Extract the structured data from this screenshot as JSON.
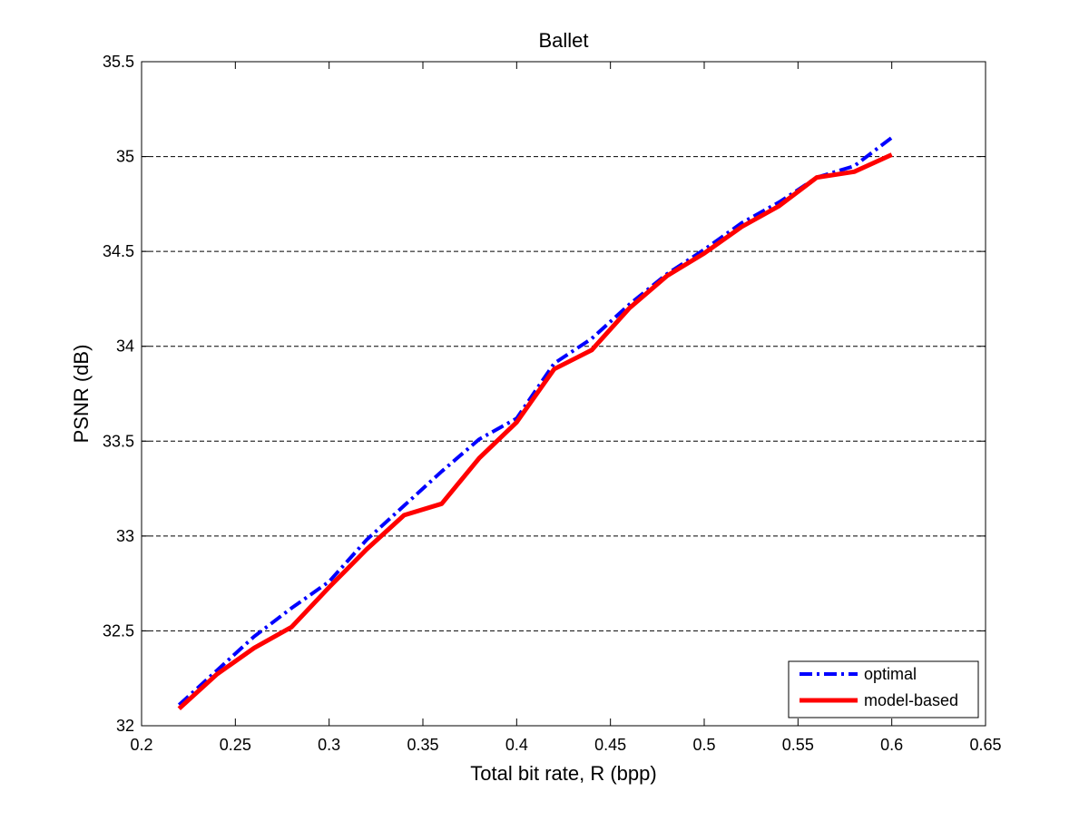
{
  "chart_data": {
    "type": "line",
    "title": "Ballet",
    "xlabel": "Total bit rate, R (bpp)",
    "ylabel": "PSNR (dB)",
    "xlim": [
      0.2,
      0.65
    ],
    "ylim": [
      32,
      35.5
    ],
    "xticks": [
      0.2,
      0.25,
      0.3,
      0.35,
      0.4,
      0.45,
      0.5,
      0.55,
      0.6,
      0.65
    ],
    "yticks": [
      32,
      32.5,
      33,
      33.5,
      34,
      34.5,
      35,
      35.5
    ],
    "xtick_labels": [
      "0.2",
      "0.25",
      "0.3",
      "0.35",
      "0.4",
      "0.45",
      "0.5",
      "0.55",
      "0.6",
      "0.65"
    ],
    "ytick_labels": [
      "32",
      "32.5",
      "33",
      "33.5",
      "34",
      "34.5",
      "35",
      "35.5"
    ],
    "grid": "horizontal dashed",
    "legend_position": "bottom-right",
    "series": [
      {
        "name": "optimal",
        "color": "#0000ff",
        "style": "dash-dot",
        "x": [
          0.22,
          0.24,
          0.26,
          0.28,
          0.3,
          0.32,
          0.34,
          0.36,
          0.38,
          0.4,
          0.42,
          0.44,
          0.46,
          0.48,
          0.5,
          0.52,
          0.54,
          0.56,
          0.58,
          0.6
        ],
        "y": [
          32.11,
          32.29,
          32.47,
          32.62,
          32.76,
          32.98,
          33.16,
          33.34,
          33.51,
          33.62,
          33.91,
          34.04,
          34.22,
          34.38,
          34.51,
          34.65,
          34.76,
          34.89,
          34.95,
          35.1
        ]
      },
      {
        "name": "model-based",
        "color": "#ff0000",
        "style": "solid",
        "x": [
          0.22,
          0.24,
          0.26,
          0.28,
          0.3,
          0.32,
          0.34,
          0.36,
          0.38,
          0.4,
          0.42,
          0.44,
          0.46,
          0.48,
          0.5,
          0.52,
          0.54,
          0.56,
          0.58,
          0.6
        ],
        "y": [
          32.09,
          32.27,
          32.41,
          32.52,
          32.73,
          32.93,
          33.11,
          33.17,
          33.41,
          33.6,
          33.88,
          33.98,
          34.2,
          34.37,
          34.49,
          34.63,
          34.74,
          34.89,
          34.92,
          35.01
        ]
      }
    ]
  }
}
